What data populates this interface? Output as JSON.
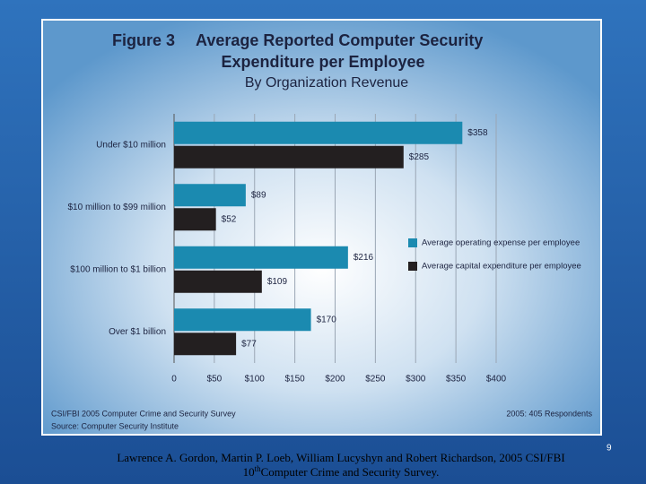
{
  "chart_data": {
    "type": "hbar",
    "figure_label": "Figure 3",
    "title_lines": [
      "Average Reported Computer Security",
      "Expenditure per Employee"
    ],
    "subtitle": "By Organization Revenue",
    "categories": [
      "Under $10 million",
      "$10 million to $99 million",
      "$100 million to $1 billion",
      "Over $1 billion"
    ],
    "series": [
      {
        "name": "Average operating expense per employee",
        "color": "#1b8ab0",
        "values": [
          358,
          89,
          216,
          170
        ],
        "value_labels": [
          "$358",
          "$89",
          "$216",
          "$170"
        ]
      },
      {
        "name": "Average capital expenditure per employee",
        "color": "#231f20",
        "values": [
          285,
          52,
          109,
          77
        ],
        "value_labels": [
          "$285",
          "$52",
          "$109",
          "$77"
        ]
      }
    ],
    "xlim": [
      0,
      400
    ],
    "xticks": [
      0,
      {
        "value": 50,
        "label": "$50"
      },
      {
        "value": 100,
        "label": "$100"
      },
      {
        "value": 150,
        "label": "$150"
      },
      {
        "value": 200,
        "label": "$200"
      },
      {
        "value": 250,
        "label": "$250"
      },
      {
        "value": 300,
        "label": "$300"
      },
      {
        "value": 350,
        "label": "$350"
      },
      {
        "value": 400,
        "label": "$400"
      }
    ],
    "grid": true,
    "footnotes": [
      "CSI/FBI 2005 Computer Crime and Security Survey",
      "Source: Computer Security Institute"
    ],
    "respondents": "2005: 405 Respondents"
  },
  "caption": {
    "line1": "Lawrence A. Gordon, Martin P. Loeb, William Lucyshyn and Robert Richardson, 2005 CSI/FBI",
    "number": "10",
    "suffix": "th",
    "line2": "Computer Crime and Security Survey."
  },
  "page_number": "9"
}
